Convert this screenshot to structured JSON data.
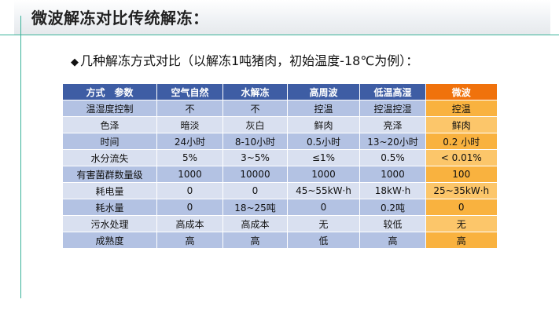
{
  "slide": {
    "title": "微波解冻对比传统解冻：",
    "subtitle_bullet": "◆",
    "subtitle": "几种解冻方式对比（以解冻1吨猪肉，初始温度-18℃为例）："
  },
  "table": {
    "headers": [
      "方式　参数",
      "空气自然",
      "水解冻",
      "高周波",
      "低温高湿",
      "微波"
    ],
    "rows": [
      [
        "温湿度控制",
        "不",
        "不",
        "控温",
        "控温控湿",
        "控温"
      ],
      [
        "色泽",
        "暗淡",
        "灰白",
        "鲜肉",
        "亮泽",
        "鲜肉"
      ],
      [
        "时间",
        "24小时",
        "8-10小时",
        "0.5小时",
        "13~20小时",
        "0.2 小时"
      ],
      [
        "水分流失",
        "5%",
        "3~5%",
        "≤1%",
        "0.5%",
        "< 0.01%"
      ],
      [
        "有害菌群数量级",
        "1000",
        "10000",
        "1000",
        "1000",
        "100"
      ],
      [
        "耗电量",
        "0",
        "0",
        "45~55kW·h",
        "18kW·h",
        "25~35kW·h"
      ],
      [
        "耗水量",
        "0",
        "18~25吨",
        "0",
        "0.2吨",
        "0"
      ],
      [
        "污水处理",
        "高成本",
        "高成本",
        "无",
        "较低",
        "无"
      ],
      [
        "成熟度",
        "高",
        "高",
        "低",
        "高",
        "高"
      ]
    ]
  },
  "colors": {
    "header_bg": "#3e5da4",
    "highlight_header_bg": "#f0720c",
    "row_bg": "#b3c2e3",
    "row_alt_bg": "#d9e0f0",
    "highlight_bg": "#f9b23f",
    "highlight_alt_bg": "#fcc66a",
    "accent_line": "#3bb39a"
  }
}
